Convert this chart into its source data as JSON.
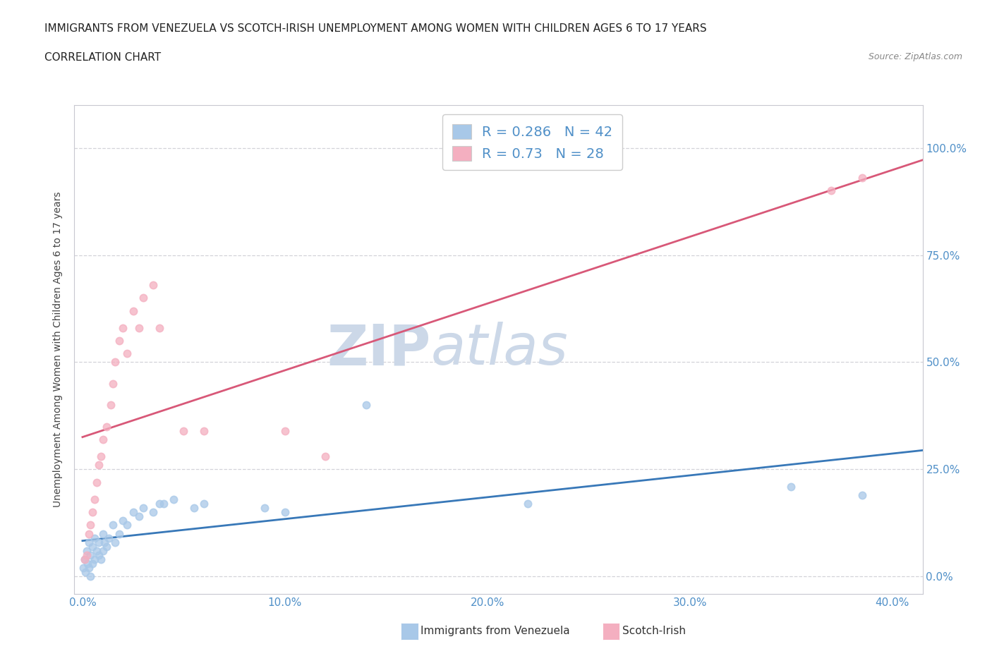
{
  "title1": "IMMIGRANTS FROM VENEZUELA VS SCOTCH-IRISH UNEMPLOYMENT AMONG WOMEN WITH CHILDREN AGES 6 TO 17 YEARS",
  "title2": "CORRELATION CHART",
  "source": "Source: ZipAtlas.com",
  "xlim": [
    -0.004,
    0.415
  ],
  "ylim": [
    -0.04,
    1.1
  ],
  "x_ticks": [
    0.0,
    0.1,
    0.2,
    0.3,
    0.4
  ],
  "x_tick_labels": [
    "0.0%",
    "10.0%",
    "20.0%",
    "30.0%",
    "40.0%"
  ],
  "y_ticks": [
    0.0,
    0.25,
    0.5,
    0.75,
    1.0
  ],
  "y_tick_labels": [
    "0.0%",
    "25.0%",
    "50.0%",
    "75.0%",
    "100.0%"
  ],
  "venezuela_R": 0.286,
  "venezuela_N": 42,
  "scotchirish_R": 0.73,
  "scotchirish_N": 28,
  "venezuela_color": "#a8c8e8",
  "scotchirish_color": "#f4afc0",
  "venezuela_line_color": "#3878b8",
  "scotchirish_line_color": "#d85878",
  "watermark_color": "#ccd8e8",
  "tick_color": "#5090c8",
  "grid_color": "#c8c8d0",
  "venezuela_x": [
    0.0005,
    0.001,
    0.0015,
    0.002,
    0.0025,
    0.003,
    0.003,
    0.004,
    0.004,
    0.005,
    0.005,
    0.006,
    0.006,
    0.007,
    0.008,
    0.008,
    0.009,
    0.01,
    0.01,
    0.011,
    0.012,
    0.013,
    0.015,
    0.016,
    0.018,
    0.02,
    0.022,
    0.025,
    0.028,
    0.03,
    0.035,
    0.038,
    0.04,
    0.045,
    0.055,
    0.06,
    0.09,
    0.1,
    0.14,
    0.22,
    0.35,
    0.385
  ],
  "venezuela_y": [
    0.02,
    0.04,
    0.01,
    0.06,
    0.03,
    0.08,
    0.02,
    0.05,
    0.0,
    0.07,
    0.03,
    0.09,
    0.04,
    0.06,
    0.05,
    0.08,
    0.04,
    0.1,
    0.06,
    0.08,
    0.07,
    0.09,
    0.12,
    0.08,
    0.1,
    0.13,
    0.12,
    0.15,
    0.14,
    0.16,
    0.15,
    0.17,
    0.17,
    0.18,
    0.16,
    0.17,
    0.16,
    0.15,
    0.4,
    0.17,
    0.21,
    0.19
  ],
  "scotchirish_x": [
    0.001,
    0.002,
    0.003,
    0.004,
    0.005,
    0.006,
    0.007,
    0.008,
    0.009,
    0.01,
    0.012,
    0.014,
    0.015,
    0.016,
    0.018,
    0.02,
    0.022,
    0.025,
    0.028,
    0.03,
    0.035,
    0.038,
    0.05,
    0.06,
    0.1,
    0.12,
    0.37,
    0.385
  ],
  "scotchirish_y": [
    0.04,
    0.05,
    0.1,
    0.12,
    0.15,
    0.18,
    0.22,
    0.26,
    0.28,
    0.32,
    0.35,
    0.4,
    0.45,
    0.5,
    0.55,
    0.58,
    0.52,
    0.62,
    0.58,
    0.65,
    0.68,
    0.58,
    0.34,
    0.34,
    0.34,
    0.28,
    0.9,
    0.93
  ]
}
